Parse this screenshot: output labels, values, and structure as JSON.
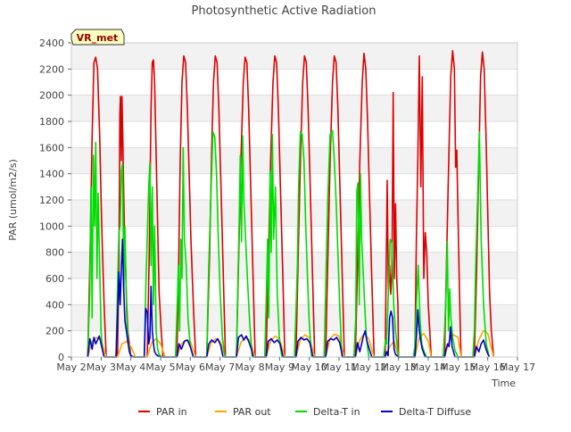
{
  "chart_data": {
    "type": "line",
    "title": "Photosynthetic Active Radiation",
    "xlabel": "Time",
    "ylabel": "PAR (umol/m2/s)",
    "site_label": "VR_met",
    "ylim": [
      0,
      2400
    ],
    "yticks": [
      0,
      200,
      400,
      600,
      800,
      1000,
      1200,
      1400,
      1600,
      1800,
      2000,
      2200,
      2400
    ],
    "xlim": [
      2,
      17
    ],
    "xticks": [
      {
        "value": 2,
        "label": "May 2"
      },
      {
        "value": 3,
        "label": "May 3"
      },
      {
        "value": 4,
        "label": "May 4"
      },
      {
        "value": 5,
        "label": "May 5"
      },
      {
        "value": 6,
        "label": "May 6"
      },
      {
        "value": 7,
        "label": "May 7"
      },
      {
        "value": 8,
        "label": "May 8"
      },
      {
        "value": 9,
        "label": "May 9"
      },
      {
        "value": 10,
        "label": "May 10"
      },
      {
        "value": 11,
        "label": "May 11"
      },
      {
        "value": 12,
        "label": "May 12"
      },
      {
        "value": 13,
        "label": "May 13"
      },
      {
        "value": 14,
        "label": "May 14"
      },
      {
        "value": 15,
        "label": "May 15"
      },
      {
        "value": 16,
        "label": "May 16"
      },
      {
        "value": 17,
        "label": "May 17"
      }
    ],
    "legend_position": "bottom-center",
    "series": [
      {
        "name": "PAR in",
        "color": "#dd0000",
        "x": [
          2.55,
          2.62,
          2.7,
          2.76,
          2.82,
          2.88,
          2.95,
          3.02,
          3.1,
          3.17,
          3.55,
          3.6,
          3.63,
          3.65,
          3.68,
          3.7,
          3.73,
          3.75,
          3.78,
          3.82,
          3.86,
          3.9,
          3.95,
          4.0,
          4.1,
          4.15,
          4.55,
          4.62,
          4.68,
          4.72,
          4.76,
          4.8,
          4.85,
          4.9,
          4.95,
          5.02,
          5.08,
          5.55,
          5.6,
          5.66,
          5.72,
          5.78,
          5.84,
          5.9,
          5.96,
          6.02,
          6.1,
          6.18,
          6.55,
          6.65,
          6.72,
          6.78,
          6.84,
          6.9,
          6.96,
          7.03,
          7.1,
          7.18,
          7.55,
          7.62,
          7.7,
          7.78,
          7.84,
          7.9,
          7.96,
          8.03,
          8.1,
          8.18,
          8.55,
          8.62,
          8.7,
          8.78,
          8.84,
          8.9,
          8.96,
          9.03,
          9.1,
          9.18,
          9.55,
          9.62,
          9.7,
          9.78,
          9.84,
          9.9,
          9.96,
          10.03,
          10.1,
          10.18,
          10.55,
          10.62,
          10.7,
          10.78,
          10.84,
          10.9,
          10.96,
          11.03,
          11.1,
          11.18,
          11.55,
          11.62,
          11.7,
          11.78,
          11.84,
          11.9,
          11.96,
          12.03,
          12.1,
          12.18,
          12.55,
          12.62,
          12.66,
          12.7,
          12.74,
          12.78,
          12.82,
          12.86,
          12.9,
          12.94,
          12.98,
          13.0,
          13.55,
          13.6,
          13.65,
          13.7,
          13.75,
          13.8,
          13.85,
          13.9,
          13.95,
          14.0,
          14.05,
          14.1,
          14.55,
          14.62,
          14.7,
          14.76,
          14.82,
          14.88,
          14.92,
          14.96,
          15.0,
          15.05,
          15.1,
          15.55,
          15.62,
          15.7,
          15.76,
          15.82,
          15.88,
          15.94,
          16.0,
          16.06,
          16.12,
          16.2
        ],
        "values": [
          0,
          700,
          1700,
          2250,
          2290,
          2200,
          1700,
          1000,
          400,
          0,
          0,
          700,
          1850,
          1990,
          1500,
          1990,
          1650,
          1400,
          1000,
          700,
          400,
          200,
          100,
          0,
          0,
          0,
          0,
          800,
          1900,
          2250,
          2270,
          2100,
          1550,
          1000,
          500,
          200,
          0,
          0,
          600,
          1500,
          2100,
          2300,
          2250,
          1900,
          1400,
          900,
          400,
          0,
          0,
          800,
          1600,
          2100,
          2300,
          2250,
          1900,
          1300,
          700,
          0,
          0,
          700,
          1500,
          2100,
          2290,
          2250,
          1900,
          1300,
          700,
          0,
          0,
          700,
          1500,
          2100,
          2300,
          2250,
          1900,
          1300,
          700,
          0,
          0,
          700,
          1500,
          2100,
          2300,
          2250,
          1900,
          1300,
          700,
          0,
          0,
          700,
          1500,
          2100,
          2300,
          2250,
          1900,
          1300,
          700,
          0,
          0,
          700,
          1500,
          2100,
          2320,
          2200,
          1800,
          1200,
          600,
          0,
          0,
          1350,
          500,
          700,
          480,
          650,
          2020,
          600,
          1170,
          600,
          400,
          0,
          0,
          900,
          1500,
          2300,
          1300,
          2140,
          600,
          950,
          800,
          400,
          200,
          0,
          0,
          800,
          1600,
          2150,
          2340,
          2200,
          1450,
          1580,
          1100,
          500,
          0,
          0,
          600,
          1500,
          2150,
          2330,
          2200,
          1700,
          1100,
          500,
          200,
          0
        ]
      },
      {
        "name": "PAR out",
        "color": "#ffa500",
        "x": [
          2.55,
          2.7,
          2.85,
          3.0,
          3.17,
          3.55,
          3.7,
          3.85,
          4.0,
          4.15,
          4.55,
          4.7,
          4.85,
          5.0,
          5.15,
          5.55,
          5.7,
          5.85,
          6.0,
          6.18,
          6.55,
          6.7,
          6.85,
          7.0,
          7.18,
          7.55,
          7.7,
          7.85,
          8.0,
          8.18,
          8.55,
          8.7,
          8.85,
          9.0,
          9.18,
          9.55,
          9.7,
          9.85,
          10.0,
          10.18,
          10.55,
          10.7,
          10.85,
          11.0,
          11.18,
          11.55,
          11.7,
          11.85,
          12.0,
          12.18,
          12.55,
          12.7,
          12.85,
          13.0,
          13.55,
          13.7,
          13.85,
          14.0,
          14.1,
          14.55,
          14.7,
          14.85,
          15.0,
          15.1,
          15.55,
          15.7,
          15.85,
          16.0,
          16.2
        ],
        "values": [
          0,
          120,
          150,
          130,
          0,
          0,
          100,
          120,
          80,
          0,
          0,
          110,
          140,
          100,
          0,
          0,
          100,
          130,
          120,
          0,
          0,
          110,
          140,
          120,
          0,
          0,
          110,
          150,
          130,
          0,
          0,
          120,
          160,
          140,
          0,
          0,
          130,
          170,
          150,
          0,
          0,
          140,
          175,
          160,
          0,
          0,
          130,
          180,
          140,
          0,
          0,
          80,
          120,
          0,
          0,
          150,
          180,
          120,
          0,
          0,
          120,
          170,
          150,
          0,
          0,
          130,
          200,
          180,
          0
        ]
      },
      {
        "name": "Delta-T in",
        "color": "#00dd00",
        "x": [
          2.55,
          2.62,
          2.66,
          2.7,
          2.74,
          2.78,
          2.82,
          2.86,
          2.9,
          2.95,
          3.0,
          3.05,
          3.1,
          3.5,
          3.56,
          3.6,
          3.64,
          3.68,
          3.72,
          3.76,
          3.8,
          3.86,
          3.92,
          3.98,
          4.05,
          4.45,
          4.5,
          4.55,
          4.6,
          4.64,
          4.68,
          4.72,
          4.76,
          4.8,
          4.85,
          4.9,
          4.95,
          5.05,
          5.5,
          5.56,
          5.6,
          5.64,
          5.68,
          5.72,
          5.76,
          5.8,
          5.86,
          5.92,
          6.0,
          6.1,
          6.55,
          6.62,
          6.7,
          6.76,
          6.82,
          6.88,
          6.94,
          7.0,
          7.08,
          7.16,
          7.55,
          7.6,
          7.64,
          7.68,
          7.72,
          7.76,
          7.8,
          7.86,
          7.92,
          8.0,
          8.08,
          8.5,
          8.56,
          8.6,
          8.64,
          8.68,
          8.72,
          8.76,
          8.8,
          8.86,
          8.92,
          9.0,
          9.08,
          9.5,
          9.56,
          9.6,
          9.64,
          9.7,
          9.76,
          9.82,
          9.88,
          9.94,
          10.0,
          10.08,
          10.5,
          10.56,
          10.62,
          10.7,
          10.78,
          10.84,
          10.9,
          10.96,
          11.02,
          11.1,
          11.5,
          11.56,
          11.6,
          11.64,
          11.68,
          11.72,
          11.76,
          11.8,
          11.86,
          11.92,
          12.0,
          12.5,
          12.56,
          12.6,
          12.66,
          12.72,
          12.78,
          12.84,
          12.9,
          12.96,
          13.0,
          13.5,
          13.55,
          13.6,
          13.66,
          13.72,
          13.78,
          13.86,
          13.95,
          14.5,
          14.55,
          14.6,
          14.64,
          14.68,
          14.72,
          14.76,
          14.82,
          14.9,
          15.0,
          15.5,
          15.55,
          15.6,
          15.66,
          15.72,
          15.78,
          15.86,
          15.95,
          16.05
        ],
        "values": [
          0,
          500,
          1300,
          300,
          1540,
          1000,
          1640,
          600,
          1250,
          700,
          200,
          50,
          0,
          0,
          600,
          950,
          1000,
          1420,
          1480,
          500,
          1000,
          300,
          100,
          20,
          0,
          0,
          500,
          900,
          1300,
          1480,
          700,
          1300,
          400,
          1000,
          200,
          60,
          20,
          0,
          0,
          400,
          700,
          200,
          900,
          600,
          1600,
          900,
          700,
          300,
          80,
          0,
          0,
          700,
          1300,
          1720,
          1680,
          1400,
          900,
          500,
          150,
          0,
          0,
          600,
          1000,
          1540,
          880,
          1690,
          1200,
          900,
          600,
          250,
          0,
          0,
          500,
          900,
          300,
          1420,
          800,
          1700,
          900,
          1300,
          500,
          120,
          0,
          0,
          400,
          700,
          1300,
          1720,
          1700,
          1500,
          1000,
          600,
          250,
          0,
          0,
          600,
          1200,
          1700,
          1730,
          1500,
          1200,
          800,
          400,
          0,
          0,
          300,
          1270,
          1330,
          400,
          1400,
          900,
          700,
          400,
          150,
          0,
          0,
          130,
          100,
          500,
          900,
          870,
          400,
          200,
          80,
          0,
          0,
          80,
          400,
          700,
          300,
          100,
          40,
          0,
          0,
          200,
          500,
          880,
          200,
          520,
          300,
          150,
          50,
          0,
          0,
          200,
          740,
          1200,
          1720,
          900,
          400,
          100,
          0
        ]
      },
      {
        "name": "Delta-T Diffuse",
        "color": "#0000cc",
        "x": [
          2.55,
          2.62,
          2.7,
          2.76,
          2.82,
          2.88,
          2.94,
          3.0,
          3.1,
          3.5,
          3.56,
          3.6,
          3.64,
          3.68,
          3.72,
          3.76,
          3.8,
          3.85,
          3.9,
          3.95,
          4.0,
          4.1,
          4.45,
          4.5,
          4.55,
          4.6,
          4.64,
          4.68,
          4.72,
          4.76,
          4.8,
          4.85,
          4.9,
          5.0,
          5.55,
          5.62,
          5.7,
          5.8,
          5.9,
          6.0,
          6.1,
          6.55,
          6.62,
          6.72,
          6.82,
          6.92,
          7.02,
          7.1,
          7.55,
          7.62,
          7.72,
          7.8,
          7.88,
          7.96,
          8.04,
          8.12,
          8.55,
          8.62,
          8.72,
          8.82,
          8.92,
          9.02,
          9.12,
          9.55,
          9.62,
          9.72,
          9.82,
          9.92,
          10.02,
          10.12,
          10.55,
          10.62,
          10.72,
          10.82,
          10.92,
          11.02,
          11.12,
          11.55,
          11.62,
          11.7,
          11.76,
          11.82,
          11.88,
          11.94,
          12.02,
          12.1,
          12.55,
          12.6,
          12.65,
          12.7,
          12.75,
          12.8,
          12.85,
          12.9,
          12.95,
          13.0,
          13.55,
          13.6,
          13.65,
          13.7,
          13.75,
          13.8,
          13.9,
          14.55,
          14.6,
          14.65,
          14.7,
          14.75,
          14.8,
          14.9,
          15.55,
          15.62,
          15.7,
          15.78,
          15.86,
          15.94,
          16.05
        ],
        "values": [
          0,
          140,
          60,
          150,
          100,
          130,
          160,
          100,
          0,
          0,
          360,
          650,
          400,
          680,
          900,
          500,
          280,
          200,
          120,
          40,
          10,
          0,
          0,
          370,
          340,
          100,
          150,
          540,
          200,
          100,
          40,
          20,
          10,
          0,
          0,
          100,
          60,
          120,
          130,
          80,
          0,
          0,
          100,
          130,
          110,
          140,
          90,
          0,
          0,
          150,
          170,
          130,
          160,
          120,
          70,
          0,
          0,
          120,
          140,
          110,
          130,
          100,
          0,
          0,
          120,
          150,
          130,
          140,
          110,
          0,
          0,
          120,
          140,
          130,
          150,
          110,
          0,
          0,
          110,
          40,
          100,
          160,
          200,
          120,
          60,
          0,
          0,
          40,
          10,
          300,
          350,
          300,
          60,
          20,
          10,
          0,
          0,
          150,
          360,
          200,
          120,
          60,
          0,
          0,
          60,
          100,
          80,
          230,
          80,
          0,
          0,
          80,
          40,
          100,
          130,
          60,
          0
        ]
      }
    ]
  }
}
